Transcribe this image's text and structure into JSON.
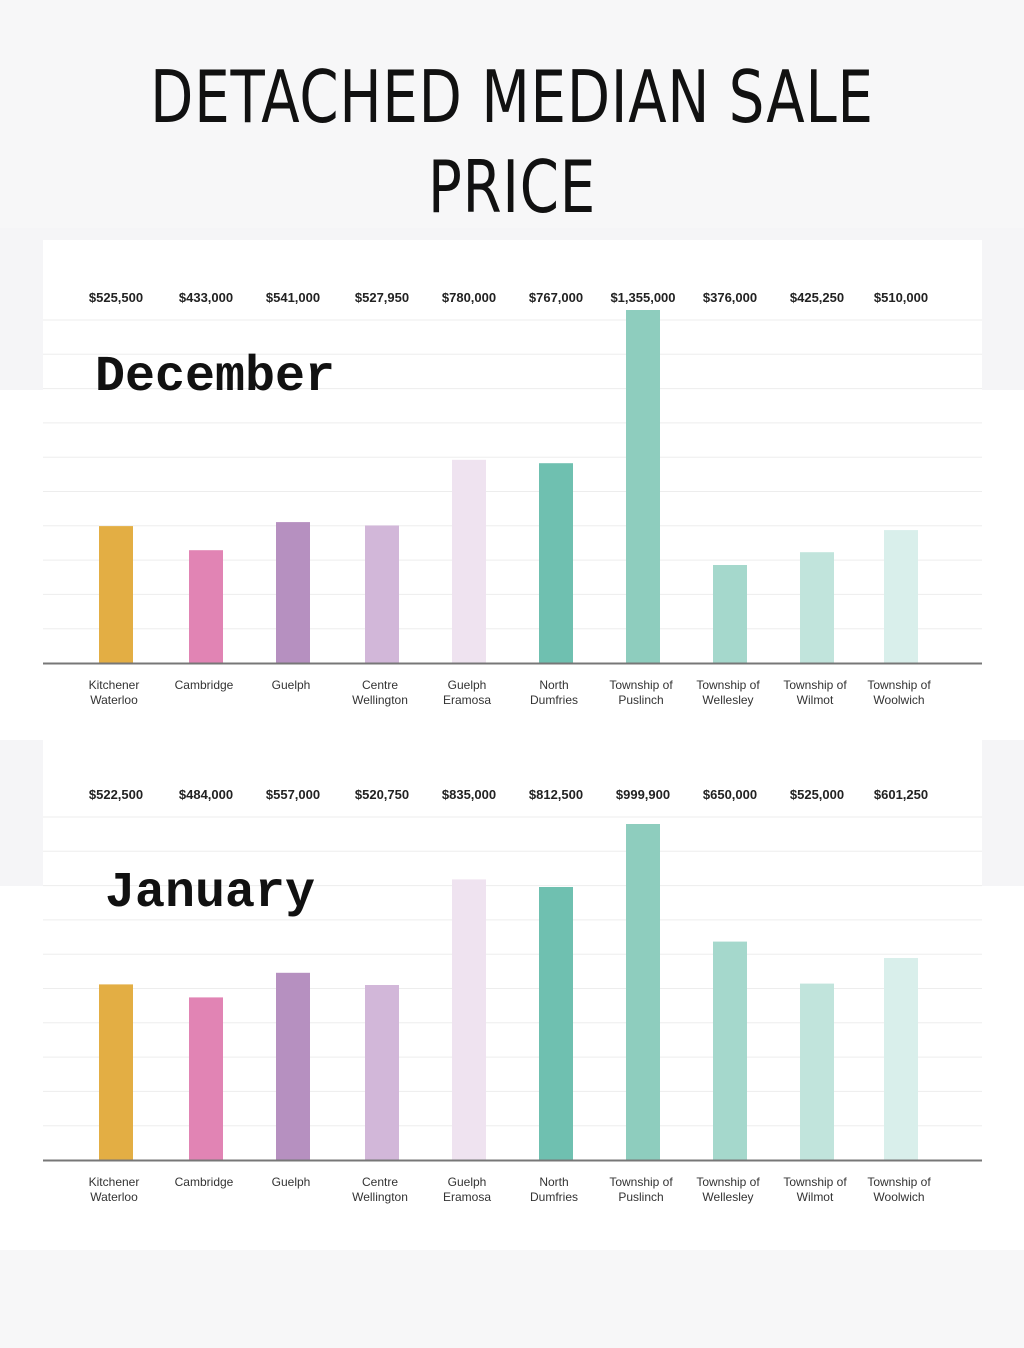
{
  "title": "DETACHED MEDIAN SALE PRICE",
  "chart_data": [
    {
      "type": "bar",
      "panel_label": "December",
      "categories": [
        [
          "Kitchener",
          "Waterloo"
        ],
        [
          "Cambridge"
        ],
        [
          "Guelph"
        ],
        [
          "Centre",
          "Wellington"
        ],
        [
          "Guelph",
          "Eramosa"
        ],
        [
          "North",
          "Dumfries"
        ],
        [
          "Township of",
          "Puslinch"
        ],
        [
          "Township of",
          "Wellesley"
        ],
        [
          "Township of",
          "Wilmot"
        ],
        [
          "Township of",
          "Woolwich"
        ]
      ],
      "values": [
        525500,
        433000,
        541000,
        527950,
        780000,
        767000,
        1355000,
        376000,
        425250,
        510000
      ],
      "value_labels": [
        "$525,500",
        "$433,000",
        "$541,000",
        "$527,950",
        "$780,000",
        "$767,000",
        "$1,355,000",
        "$376,000",
        "$425,250",
        "$510,000"
      ],
      "colors": [
        "#e3ae44",
        "#e184b4",
        "#b690c0",
        "#d2b7d9",
        "#efe3f0",
        "#6fc0b0",
        "#8ecdbe",
        "#a5d8cc",
        "#c1e4dc",
        "#d9efeb"
      ],
      "grid": true,
      "legend": "none"
    },
    {
      "type": "bar",
      "panel_label": "January",
      "categories": [
        [
          "Kitchener",
          "Waterloo"
        ],
        [
          "Cambridge"
        ],
        [
          "Guelph"
        ],
        [
          "Centre",
          "Wellington"
        ],
        [
          "Guelph",
          "Eramosa"
        ],
        [
          "North",
          "Dumfries"
        ],
        [
          "Township of",
          "Puslinch"
        ],
        [
          "Township of",
          "Wellesley"
        ],
        [
          "Township of",
          "Wilmot"
        ],
        [
          "Township of",
          "Woolwich"
        ]
      ],
      "values": [
        522500,
        484000,
        557000,
        520750,
        835000,
        812500,
        999900,
        650000,
        525000,
        601250
      ],
      "value_labels": [
        "$522,500",
        "$484,000",
        "$557,000",
        "$520,750",
        "$835,000",
        "$812,500",
        "$999,900",
        "$650,000",
        "$525,000",
        "$601,250"
      ],
      "colors": [
        "#e3ae44",
        "#e184b4",
        "#b690c0",
        "#d2b7d9",
        "#efe3f0",
        "#6fc0b0",
        "#8ecdbe",
        "#a5d8cc",
        "#c1e4dc",
        "#d9efeb"
      ],
      "grid": true,
      "legend": "none"
    }
  ]
}
